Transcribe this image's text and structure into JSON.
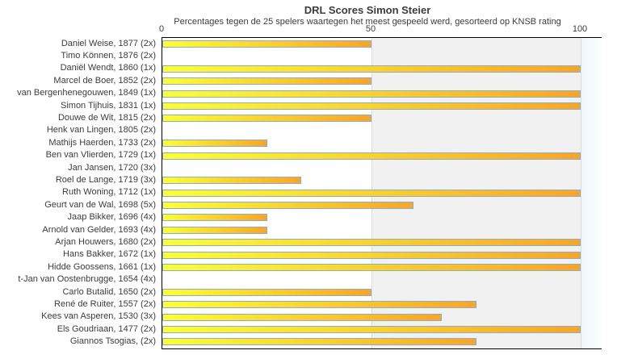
{
  "chart_data": {
    "type": "bar",
    "orientation": "horizontal",
    "title": "DRL Scores Simon Steier",
    "subtitle": "Percentages tegen de 25 spelers waartegen het meest gespeeld werd, gesorteerd op KNSB rating",
    "xlabel": "",
    "ylabel": "",
    "xlim": [
      0,
      105
    ],
    "xticks": [
      0,
      50,
      100
    ],
    "legend": "none",
    "categories": [
      "Daniel Weise, 1877 (2x)",
      "Timo Können, 1876 (2x)",
      "Daniël Wendt, 1860 (1x)",
      "Marcel de Boer, 1852 (2x)",
      "van Bergenhenegouwen, 1849 (1x)",
      "Simon Tijhuis, 1831 (1x)",
      "Douwe de Wit, 1815 (2x)",
      "Henk van Lingen, 1805 (2x)",
      "Mathijs Haerden, 1733 (2x)",
      "Ben van Vlierden, 1729 (1x)",
      "Jan Jansen, 1720 (3x)",
      "Roel de Lange, 1719 (3x)",
      "Ruth Woning, 1712 (1x)",
      "Geurt van de Wal, 1698 (5x)",
      "Jaap Bikker, 1696 (4x)",
      "Arnold van Gelder, 1693 (4x)",
      "Arjan Houwers, 1680 (2x)",
      "Hans Bakker, 1672 (1x)",
      "Hidde Goossens, 1661 (1x)",
      "t-Jan van Oostenbrugge, 1654 (4x)",
      "Carlo Butalid, 1650 (2x)",
      "René de Ruiter, 1557 (2x)",
      "Kees van Asperen, 1530 (3x)",
      "Els Goudriaan, 1477 (2x)",
      "Giannos Tsogias,  (2x)"
    ],
    "values": [
      50,
      0,
      100,
      50,
      100,
      100,
      50,
      0,
      25,
      100,
      0,
      33.3,
      100,
      60,
      25,
      25,
      100,
      100,
      100,
      0,
      50,
      75,
      66.7,
      100,
      75
    ],
    "plot_bands": [
      {
        "from": 0,
        "to": 50,
        "color": "#ffffff"
      },
      {
        "from": 50,
        "to": 100,
        "color": "#f1f1f1"
      },
      {
        "from": 100,
        "to": 105,
        "color": "#f5fafd"
      }
    ],
    "colors": {
      "bar_gradient_start": "#ffff2e",
      "bar_gradient_end": "#ffa41e",
      "bar_border": "#7ab0e2",
      "axis_border": "#000000",
      "text": "#3c3c3c",
      "band_divider": "#dcdcdc"
    }
  }
}
